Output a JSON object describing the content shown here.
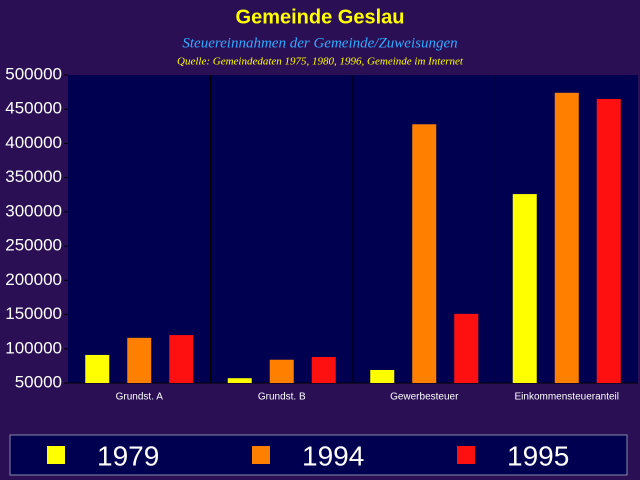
{
  "chart_data": {
    "type": "bar",
    "title": "Gemeinde Geslau",
    "subtitle": "Steuereinnahmen der Gemeinde/Zuweisungen",
    "source": "Quelle: Gemeindedaten 1975, 1980, 1996, Gemeinde im Internet",
    "categories": [
      "Grundst. A",
      "Grundst. B",
      "Gewerbesteuer",
      "Einkommensteueranteil"
    ],
    "series": [
      {
        "name": "1979",
        "color": "#ffff00",
        "values": [
          91000,
          57000,
          69000,
          326000
        ]
      },
      {
        "name": "1994",
        "color": "#ff8000",
        "values": [
          116000,
          84000,
          428000,
          474000
        ]
      },
      {
        "name": "1995",
        "color": "#ff1010",
        "values": [
          120000,
          88000,
          151000,
          465000
        ]
      }
    ],
    "ylim": [
      50000,
      500000
    ],
    "yticks": [
      50000,
      100000,
      150000,
      200000,
      250000,
      300000,
      350000,
      400000,
      450000,
      500000
    ],
    "legend_position": "bottom"
  }
}
